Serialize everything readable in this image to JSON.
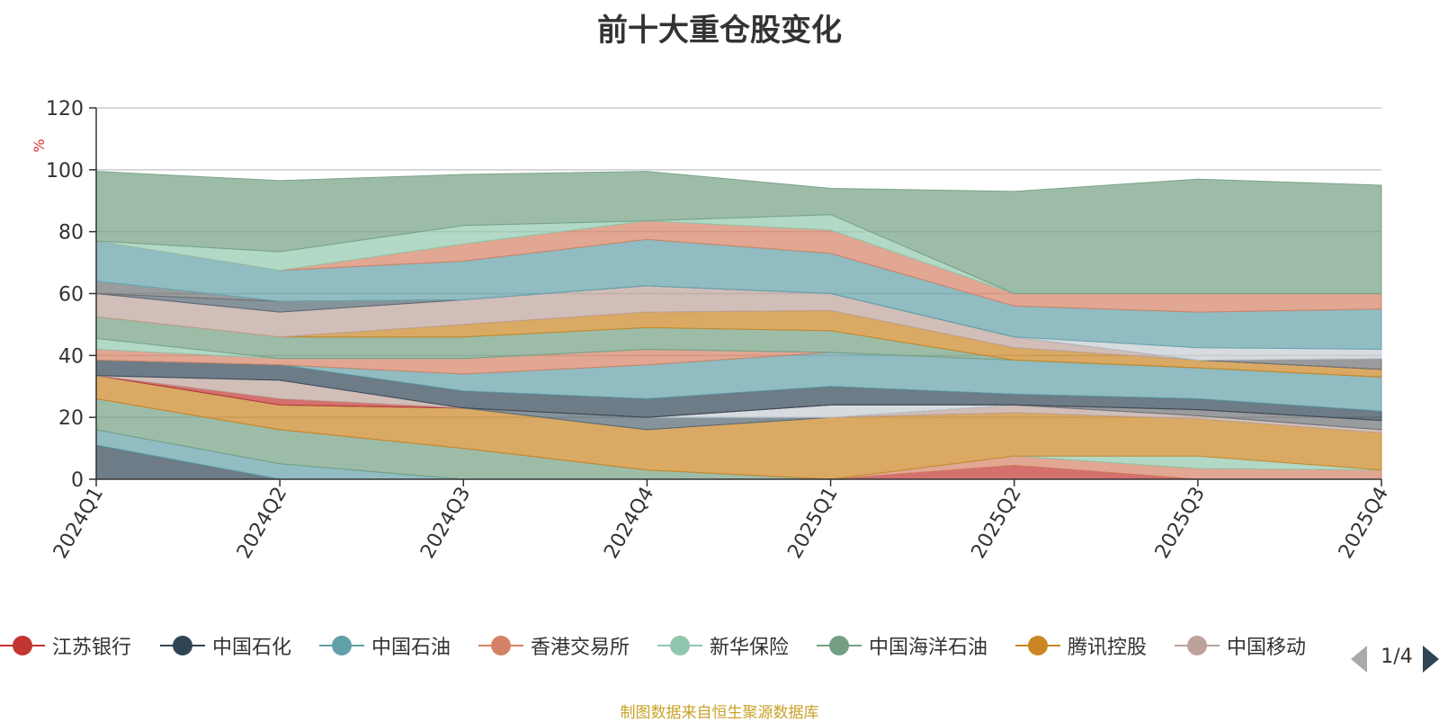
{
  "title": "前十大重仓股变化",
  "source_note": "制图数据来自恒生聚源数据库",
  "legend": {
    "items": [
      {
        "name": "江苏银行",
        "color": "#c23531"
      },
      {
        "name": "中国石化",
        "color": "#2f4554"
      },
      {
        "name": "中国石油",
        "color": "#61a0a8"
      },
      {
        "name": "香港交易所",
        "color": "#d48265"
      },
      {
        "name": "新华保险",
        "color": "#91c7ae"
      },
      {
        "name": "中国海洋石油",
        "color": "#749f83"
      },
      {
        "name": "腾讯控股",
        "color": "#ca8622"
      },
      {
        "name": "中国移动",
        "color": "#bda29a"
      }
    ],
    "page_text": "1/4"
  },
  "chart_data": {
    "type": "area",
    "stacked": true,
    "ylabel": "%",
    "ylim": [
      0,
      120
    ],
    "yticks": [
      0,
      20,
      40,
      60,
      80,
      100,
      120
    ],
    "grid": true,
    "categories": [
      "2024Q1",
      "2024Q2",
      "2024Q3",
      "2024Q4",
      "2025Q1",
      "2025Q2",
      "2025Q3",
      "2025Q4"
    ],
    "layers": [
      {
        "color": "#2f4554",
        "values": [
          11,
          0,
          0,
          0,
          0,
          0,
          0,
          0
        ]
      },
      {
        "color": "#61a0a8",
        "values": [
          5,
          5,
          0,
          0,
          0,
          0,
          0,
          0
        ]
      },
      {
        "color": "#749f83",
        "values": [
          10,
          11,
          10,
          3,
          0,
          0,
          0,
          0
        ]
      },
      {
        "color": "#c23531",
        "values": [
          0,
          0,
          0,
          0,
          0,
          4.5,
          0,
          0
        ]
      },
      {
        "color": "#d48265",
        "values": [
          0,
          0,
          0,
          0,
          0,
          3,
          3.5,
          3
        ]
      },
      {
        "color": "#91c7ae",
        "values": [
          0,
          0,
          0,
          0,
          0,
          0,
          4,
          0
        ]
      },
      {
        "color": "#ca8622",
        "values": [
          7.5,
          8,
          13,
          13,
          20,
          14,
          12,
          12
        ]
      },
      {
        "color": "#bda29a",
        "values": [
          0,
          0,
          0,
          0,
          0,
          2.5,
          1,
          1
        ]
      },
      {
        "color": "#546570",
        "values": [
          0,
          0,
          0,
          4,
          0,
          0,
          0,
          0
        ]
      },
      {
        "color": "#c4ccd3",
        "values": [
          0,
          0,
          0,
          0,
          4,
          0,
          0,
          0
        ]
      },
      {
        "color": "#6e7074",
        "values": [
          0,
          0,
          0,
          0,
          0,
          0,
          2,
          3
        ]
      },
      {
        "color": "#c23531",
        "values": [
          0,
          2,
          0,
          0,
          0,
          0,
          0,
          0
        ]
      },
      {
        "color": "#bda29a",
        "values": [
          0,
          6,
          0,
          0,
          0,
          0,
          0,
          0
        ]
      },
      {
        "color": "#2f4554",
        "values": [
          5,
          5,
          5.5,
          6,
          6,
          3.5,
          3.5,
          3
        ]
      },
      {
        "color": "#61a0a8",
        "values": [
          0,
          0,
          5.5,
          11,
          11,
          11,
          10,
          11
        ]
      },
      {
        "color": "#d48265",
        "values": [
          3.5,
          2,
          5,
          5,
          0,
          0,
          0,
          0
        ]
      },
      {
        "color": "#91c7ae",
        "values": [
          3.5,
          0,
          0,
          0,
          0,
          0,
          0,
          0
        ]
      },
      {
        "color": "#749f83",
        "values": [
          7,
          7,
          7,
          7,
          7,
          0,
          0,
          0
        ]
      },
      {
        "color": "#ca8622",
        "values": [
          0,
          0,
          4,
          5,
          6.5,
          4,
          2.5,
          2.5
        ]
      },
      {
        "color": "#bda29a",
        "values": [
          7.5,
          8,
          8,
          8.5,
          5.5,
          3.5,
          0,
          0
        ]
      },
      {
        "color": "#546570",
        "values": [
          0,
          3.5,
          0,
          0,
          0,
          0,
          0,
          0
        ]
      },
      {
        "color": "#6e7074",
        "values": [
          4,
          0,
          0,
          0,
          0,
          0,
          0,
          3.5
        ]
      },
      {
        "color": "#c4ccd3",
        "values": [
          0,
          0,
          0,
          0,
          0,
          0,
          4,
          3
        ]
      },
      {
        "color": "#61a0a8",
        "values": [
          13,
          10,
          12.5,
          15,
          13,
          10,
          11.5,
          13
        ]
      },
      {
        "color": "#d48265",
        "values": [
          0,
          0,
          5.5,
          6,
          7.5,
          4,
          6,
          5
        ]
      },
      {
        "color": "#91c7ae",
        "values": [
          0,
          6,
          6,
          0,
          5,
          0,
          0,
          0
        ]
      },
      {
        "color": "#749f83",
        "values": [
          22.5,
          23,
          16.5,
          16,
          8.5,
          33,
          37,
          35
        ]
      }
    ]
  }
}
